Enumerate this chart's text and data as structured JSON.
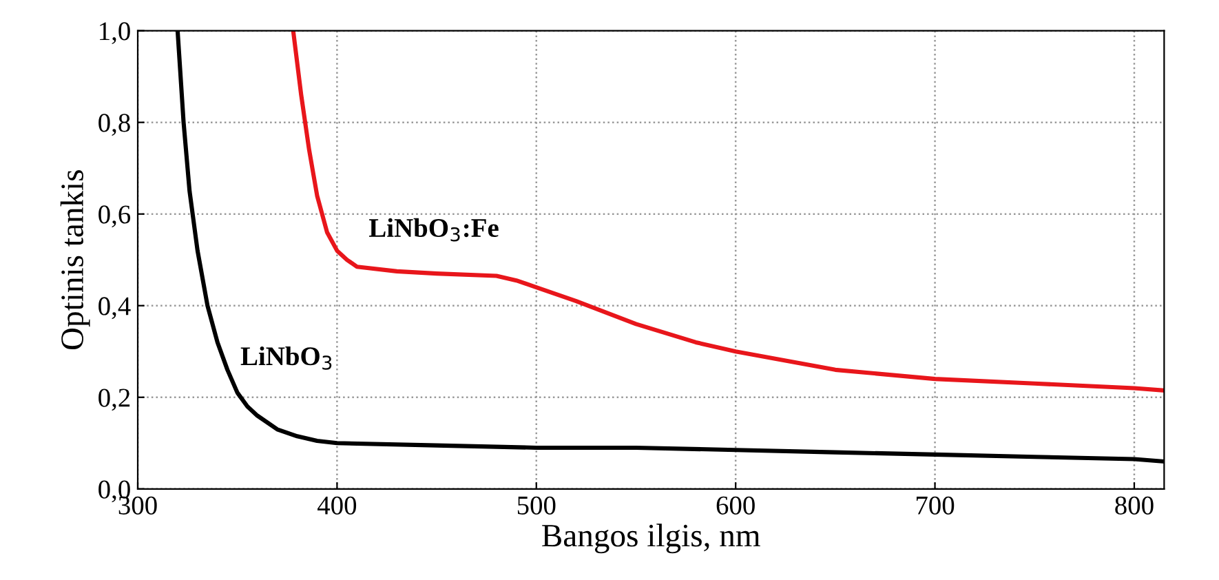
{
  "chart_data": {
    "type": "line",
    "xlabel": "Bangos ilgis, nm",
    "ylabel": "Optinis tankis",
    "series": [
      {
        "name": "LiNbO$_{3}$",
        "color": "#000000",
        "x": [
          320,
          323,
          326,
          330,
          335,
          340,
          345,
          350,
          355,
          360,
          370,
          380,
          390,
          400,
          450,
          500,
          550,
          600,
          650,
          700,
          750,
          800,
          815
        ],
        "values": [
          1.0,
          0.8,
          0.65,
          0.52,
          0.4,
          0.32,
          0.26,
          0.21,
          0.18,
          0.16,
          0.13,
          0.115,
          0.105,
          0.1,
          0.095,
          0.09,
          0.09,
          0.085,
          0.08,
          0.075,
          0.07,
          0.065,
          0.06
        ]
      },
      {
        "name": "LiNbO$_{3}$:Fe",
        "color": "#e8161b",
        "x": [
          378,
          382,
          386,
          390,
          395,
          400,
          405,
          410,
          430,
          450,
          480,
          490,
          500,
          520,
          550,
          580,
          600,
          650,
          700,
          750,
          800,
          815
        ],
        "values": [
          1.0,
          0.86,
          0.74,
          0.64,
          0.56,
          0.52,
          0.5,
          0.485,
          0.475,
          0.47,
          0.465,
          0.455,
          0.44,
          0.41,
          0.36,
          0.32,
          0.3,
          0.26,
          0.24,
          0.23,
          0.22,
          0.215
        ]
      }
    ],
    "xlim": [
      300,
      815
    ],
    "xticks": [
      300,
      400,
      500,
      600,
      700,
      800
    ],
    "ylim": [
      0,
      1.0
    ],
    "yticks": [
      {
        "value": 0,
        "label": "0,0"
      },
      {
        "value": 0.2,
        "label": "0,2"
      },
      {
        "value": 0.4,
        "label": "0,4"
      },
      {
        "value": 0.6,
        "label": "0,6"
      },
      {
        "value": 0.8,
        "label": "0,8"
      },
      {
        "value": 1.0,
        "label": "1,0"
      }
    ],
    "grid": true,
    "legend": false
  }
}
